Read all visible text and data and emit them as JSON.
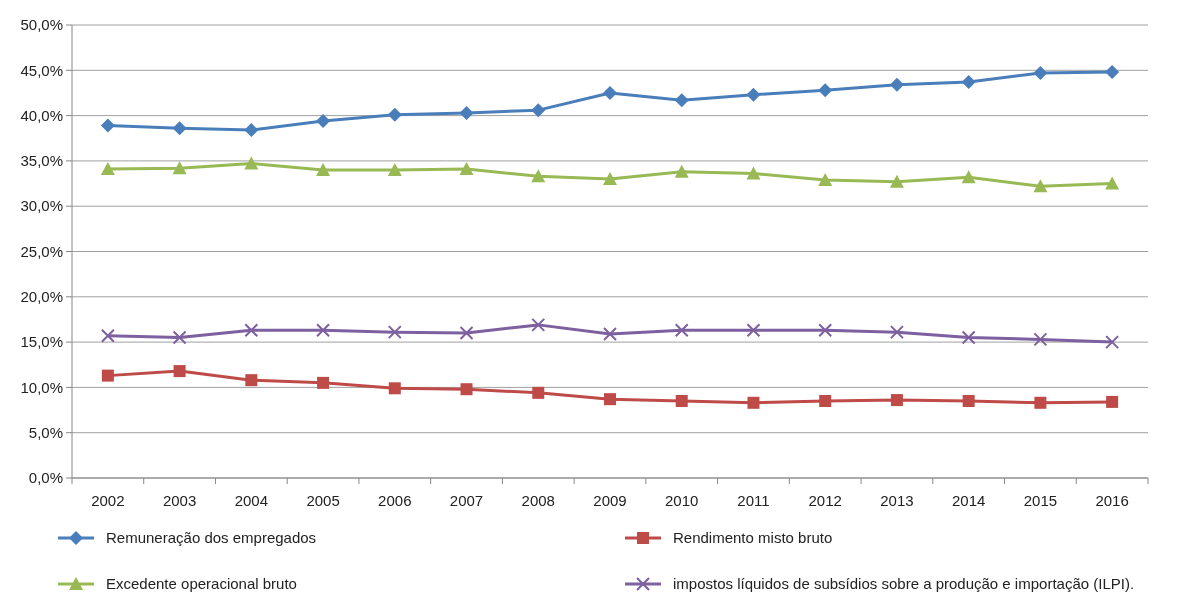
{
  "chart_data": {
    "type": "line",
    "categories": [
      "2002",
      "2003",
      "2004",
      "2005",
      "2006",
      "2007",
      "2008",
      "2009",
      "2010",
      "2011",
      "2012",
      "2013",
      "2014",
      "2015",
      "2016"
    ],
    "ylim": [
      0,
      50
    ],
    "yticks": [
      {
        "value": 0,
        "label": "0,0%"
      },
      {
        "value": 5,
        "label": "5,0%"
      },
      {
        "value": 10,
        "label": "10,0%"
      },
      {
        "value": 15,
        "label": "15,0%"
      },
      {
        "value": 20,
        "label": "20,0%"
      },
      {
        "value": 25,
        "label": "25,0%"
      },
      {
        "value": 30,
        "label": "30,0%"
      },
      {
        "value": 35,
        "label": "35,0%"
      },
      {
        "value": 40,
        "label": "40,0%"
      },
      {
        "value": 45,
        "label": "45,0%"
      },
      {
        "value": 50,
        "label": "50,0%"
      }
    ],
    "grid": "y",
    "legend": "bottom",
    "line_style": "solid",
    "series": [
      {
        "name": "Remuneração dos empregados",
        "color": "#4a7ebb",
        "marker": "diamond",
        "values": [
          38.9,
          38.6,
          38.4,
          39.4,
          40.1,
          40.3,
          40.6,
          42.5,
          41.7,
          42.3,
          42.8,
          43.4,
          43.7,
          44.7,
          44.8
        ]
      },
      {
        "name": "Rendimento misto bruto",
        "color": "#be4b48",
        "marker": "square",
        "values": [
          11.3,
          11.8,
          10.8,
          10.5,
          9.9,
          9.8,
          9.4,
          8.7,
          8.5,
          8.3,
          8.5,
          8.6,
          8.5,
          8.3,
          8.4
        ]
      },
      {
        "name": "Excedente operacional bruto",
        "color": "#98b954",
        "marker": "triangle",
        "values": [
          34.1,
          34.2,
          34.7,
          34.0,
          34.0,
          34.1,
          33.3,
          33.0,
          33.8,
          33.6,
          32.9,
          32.7,
          33.2,
          32.2,
          32.5
        ]
      },
      {
        "name": "impostos líquidos de subsídios sobre a produção e importação (ILPI).",
        "color": "#7d60a0",
        "marker": "cross",
        "values": [
          15.7,
          15.5,
          16.3,
          16.3,
          16.1,
          16.0,
          16.9,
          15.9,
          16.3,
          16.3,
          16.3,
          16.1,
          15.5,
          15.3,
          15.0
        ]
      }
    ]
  }
}
